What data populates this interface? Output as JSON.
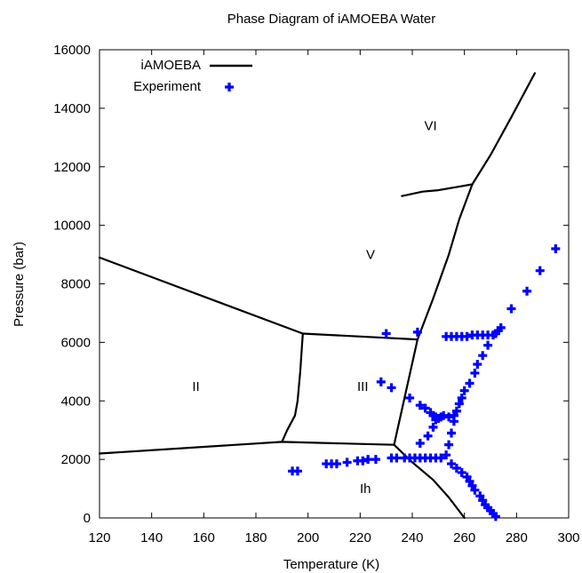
{
  "chart_data": {
    "type": "scatter",
    "title": "Phase Diagram of iAMOEBA Water",
    "xlabel": "Temperature (K)",
    "ylabel": "Pressure (bar)",
    "xlim": [
      120,
      300
    ],
    "ylim": [
      0,
      16000
    ],
    "xticks": [
      120,
      140,
      160,
      180,
      200,
      220,
      240,
      260,
      280,
      300
    ],
    "yticks": [
      0,
      2000,
      4000,
      6000,
      8000,
      10000,
      12000,
      14000,
      16000
    ],
    "grid": false,
    "legend": "top-left",
    "colors": {
      "iAMOEBA": "#000000",
      "Experiment": "#0000ff"
    },
    "series": [
      {
        "name": "iAMOEBA",
        "kind": "line",
        "segments": [
          [
            [
              120,
              8900
            ],
            [
              198,
              6300
            ]
          ],
          [
            [
              198,
              6300
            ],
            [
              242,
              6100
            ]
          ],
          [
            [
              198,
              6300
            ],
            [
              197,
              5000
            ],
            [
              196,
              4000
            ],
            [
              195,
              3500
            ],
            [
              192,
              3000
            ],
            [
              190,
              2600
            ]
          ],
          [
            [
              120,
              2200
            ],
            [
              190,
              2600
            ],
            [
              233,
              2500
            ]
          ],
          [
            [
              233,
              2500
            ],
            [
              242,
              6100
            ]
          ],
          [
            [
              233,
              2500
            ],
            [
              240,
              1900
            ],
            [
              248,
              1300
            ],
            [
              254,
              700
            ],
            [
              260,
              0
            ]
          ],
          [
            [
              242,
              6100
            ],
            [
              248,
              7500
            ],
            [
              254,
              9000
            ],
            [
              258,
              10200
            ],
            [
              263,
              11400
            ]
          ],
          [
            [
              236,
              11000
            ],
            [
              244,
              11150
            ],
            [
              250,
              11200
            ],
            [
              263,
              11400
            ]
          ],
          [
            [
              263,
              11400
            ],
            [
              270,
              12400
            ],
            [
              278,
              13700
            ],
            [
              287,
              15200
            ]
          ]
        ]
      },
      {
        "name": "Experiment",
        "kind": "scatter",
        "points": [
          [
            194,
            1600
          ],
          [
            196,
            1600
          ],
          [
            207,
            1850
          ],
          [
            209,
            1850
          ],
          [
            211,
            1850
          ],
          [
            215,
            1900
          ],
          [
            219,
            1950
          ],
          [
            221,
            1950
          ],
          [
            223,
            2000
          ],
          [
            226,
            2000
          ],
          [
            232,
            2050
          ],
          [
            234,
            2050
          ],
          [
            237,
            2050
          ],
          [
            239,
            2050
          ],
          [
            241,
            2050
          ],
          [
            243,
            2050
          ],
          [
            245,
            2050
          ],
          [
            247,
            2050
          ],
          [
            249,
            2050
          ],
          [
            251,
            2050
          ],
          [
            230,
            6300
          ],
          [
            242,
            6350
          ],
          [
            253,
            6200
          ],
          [
            255,
            6200
          ],
          [
            257,
            6200
          ],
          [
            259,
            6200
          ],
          [
            261,
            6200
          ],
          [
            263,
            6250
          ],
          [
            265,
            6250
          ],
          [
            267,
            6250
          ],
          [
            269,
            6250
          ],
          [
            271,
            6250
          ],
          [
            272,
            6300
          ],
          [
            273,
            6400
          ],
          [
            274,
            6500
          ],
          [
            228,
            4650
          ],
          [
            232,
            4450
          ],
          [
            239,
            4100
          ],
          [
            243,
            3850
          ],
          [
            245,
            3750
          ],
          [
            247,
            3600
          ],
          [
            248,
            3500
          ],
          [
            249,
            3450
          ],
          [
            250,
            3400
          ],
          [
            251,
            3450
          ],
          [
            252,
            3500
          ],
          [
            254,
            3450
          ],
          [
            256,
            3500
          ],
          [
            243,
            2550
          ],
          [
            246,
            2800
          ],
          [
            248,
            3100
          ],
          [
            249,
            3350
          ],
          [
            253,
            2150
          ],
          [
            254,
            2500
          ],
          [
            255,
            2900
          ],
          [
            256,
            3300
          ],
          [
            257,
            3650
          ],
          [
            258,
            3900
          ],
          [
            259,
            4100
          ],
          [
            260,
            4350
          ],
          [
            262,
            4600
          ],
          [
            264,
            4950
          ],
          [
            265,
            5250
          ],
          [
            267,
            5550
          ],
          [
            269,
            5900
          ],
          [
            255,
            1850
          ],
          [
            257,
            1700
          ],
          [
            259,
            1550
          ],
          [
            261,
            1400
          ],
          [
            262,
            1250
          ],
          [
            263,
            1100
          ],
          [
            264,
            950
          ],
          [
            266,
            750
          ],
          [
            267,
            600
          ],
          [
            268,
            450
          ],
          [
            269,
            350
          ],
          [
            270,
            250
          ],
          [
            271,
            150
          ],
          [
            272,
            50
          ],
          [
            278,
            7150
          ],
          [
            284,
            7750
          ],
          [
            289,
            8450
          ],
          [
            295,
            9200
          ]
        ]
      }
    ],
    "legend_entries": [
      "iAMOEBA",
      "Experiment"
    ],
    "regions": [
      {
        "text": "VI",
        "x": 0,
        "y": 0
      },
      {
        "text": "V",
        "x": 0,
        "y": 0
      },
      {
        "text": "II",
        "x": 0,
        "y": 0
      },
      {
        "text": "III",
        "x": 0,
        "y": 0
      },
      {
        "text": "Ih",
        "x": 0,
        "y": 0
      }
    ]
  }
}
